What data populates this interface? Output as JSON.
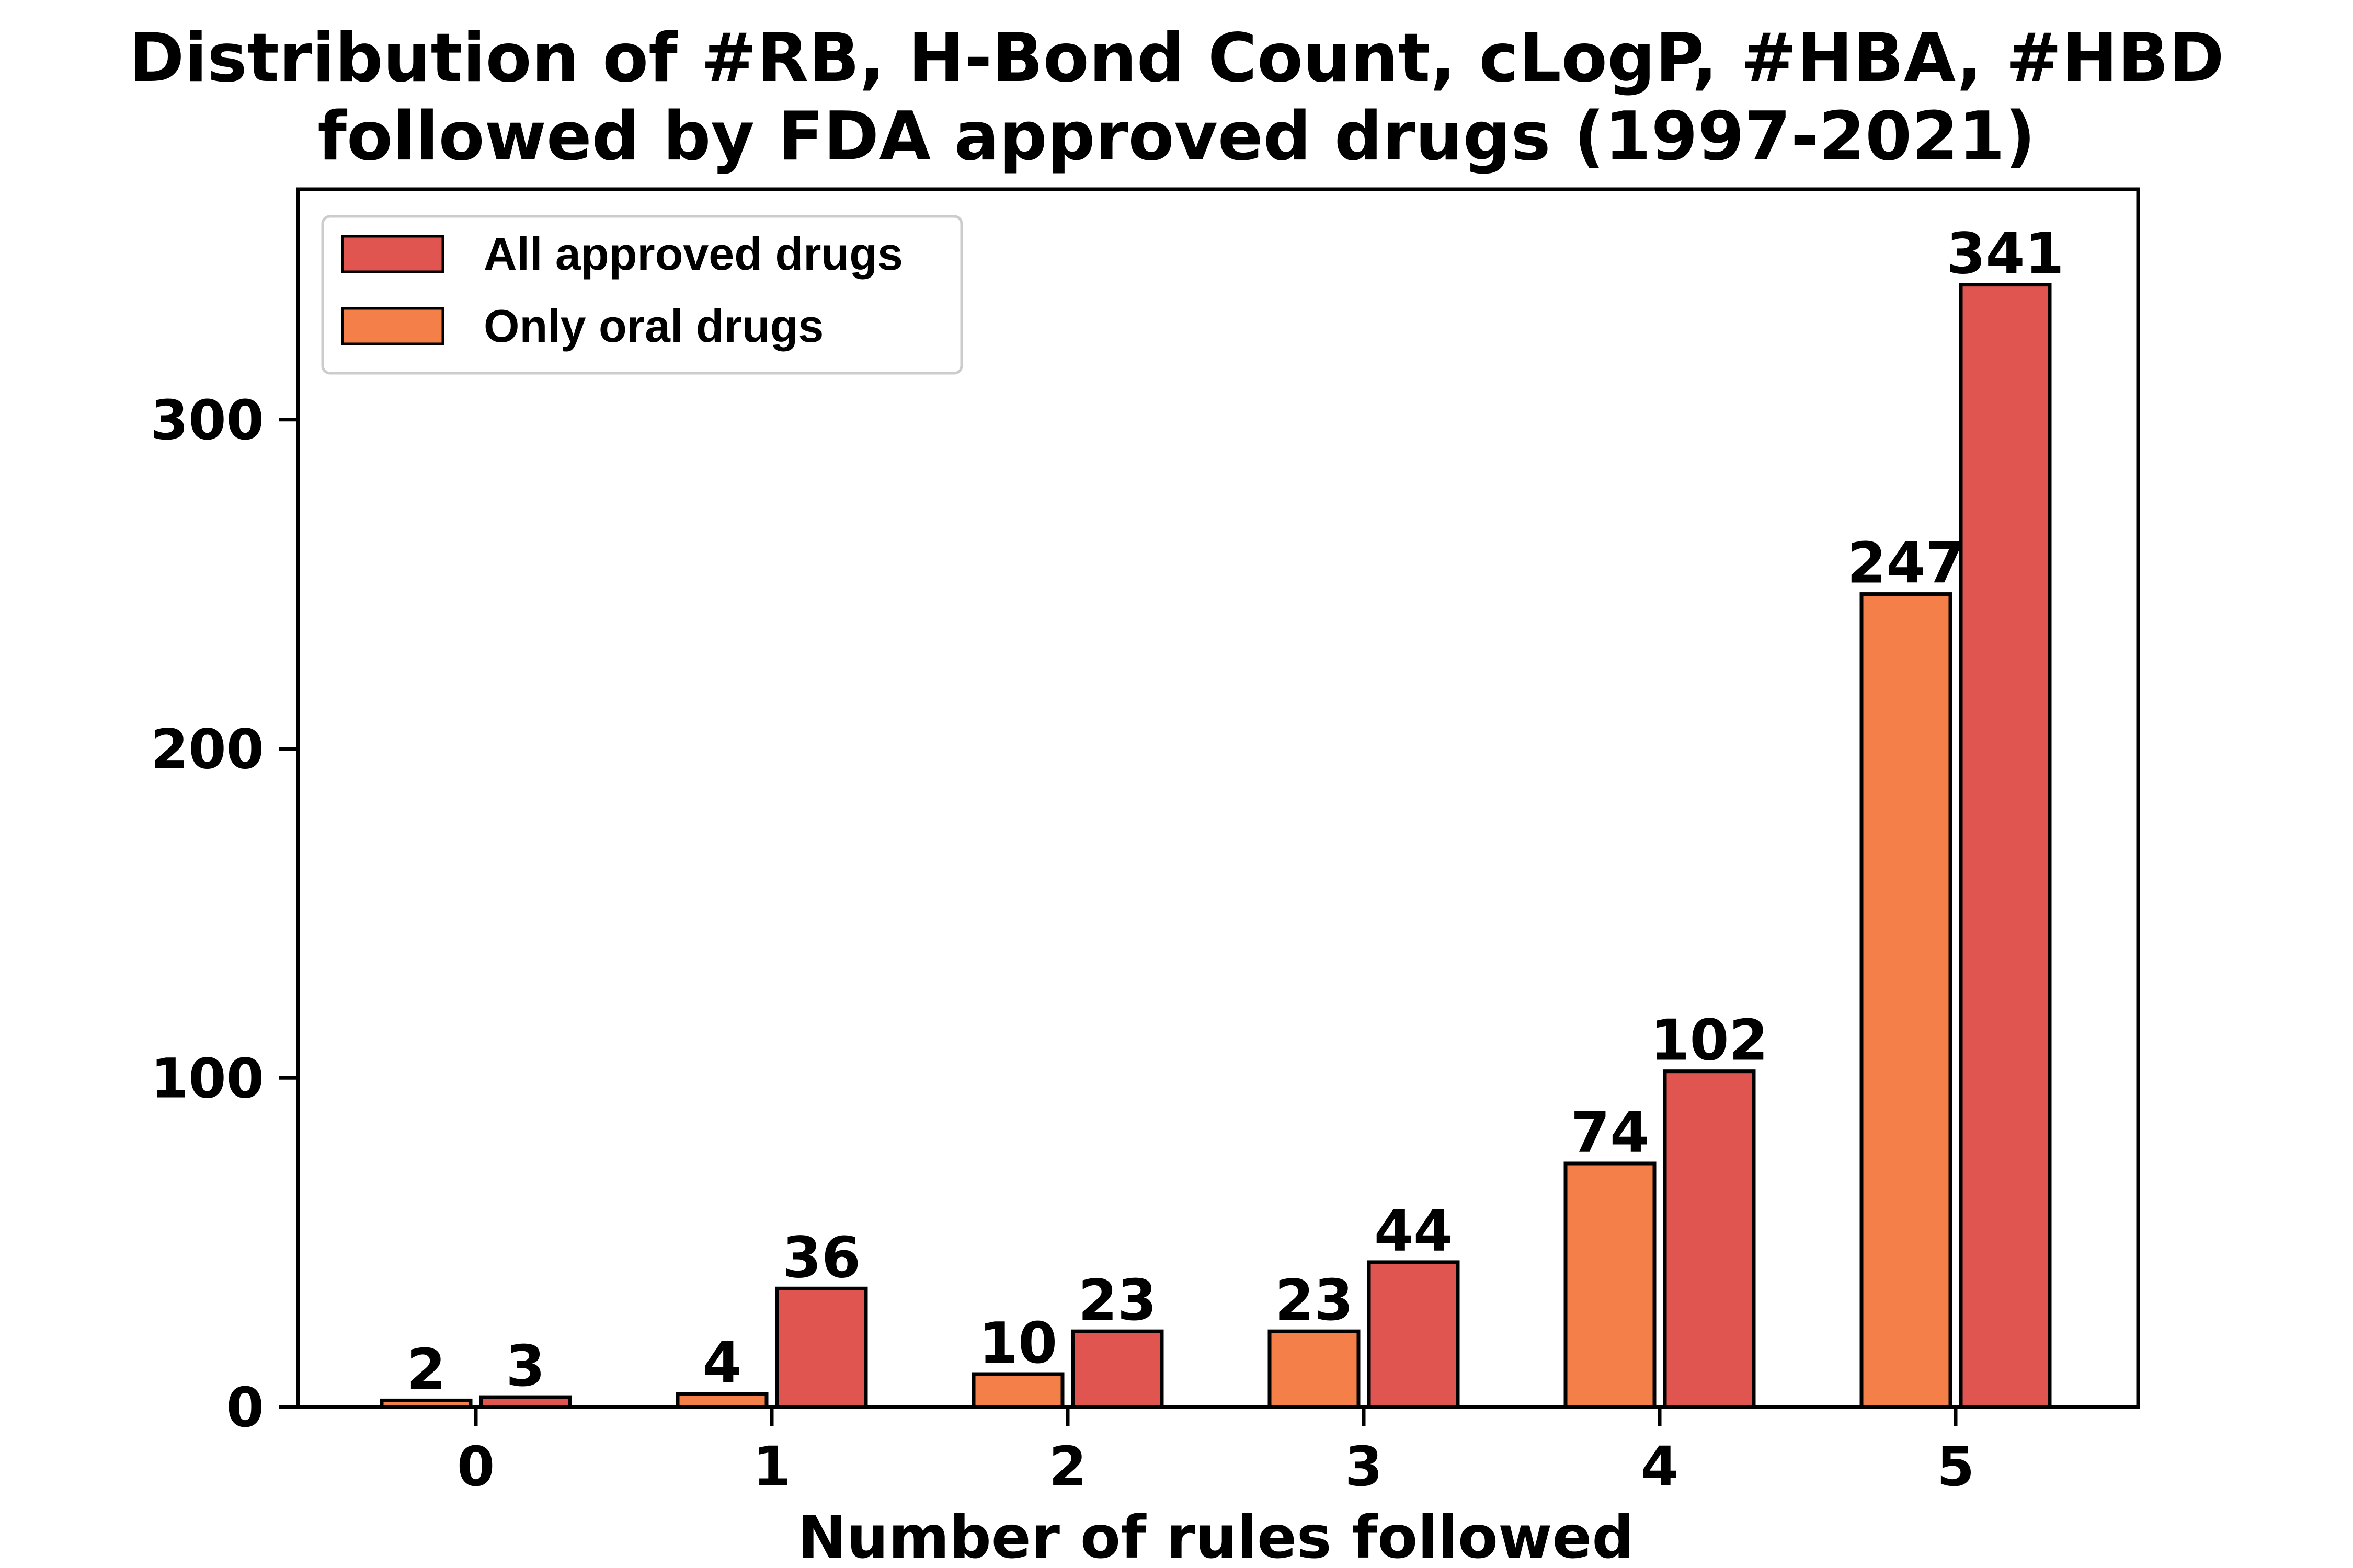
{
  "chart_data": {
    "type": "bar",
    "title_lines": [
      "Distribution of #RB, H-Bond Count, cLogP, #HBA, #HBD",
      "followed by FDA approved drugs (1997-2021)"
    ],
    "xlabel": "Number of rules followed",
    "ylabel": "",
    "categories": [
      "0",
      "1",
      "2",
      "3",
      "4",
      "5"
    ],
    "ylim": [
      0,
      370
    ],
    "yticks": [
      0,
      100,
      200,
      300
    ],
    "series": [
      {
        "name": "Only oral drugs",
        "values": [
          2,
          4,
          10,
          23,
          74,
          247
        ],
        "color": "#f47f48"
      },
      {
        "name": "All approved drugs",
        "values": [
          3,
          36,
          23,
          44,
          102,
          341
        ],
        "color": "#e05550"
      }
    ],
    "legend": {
      "position": "top-left",
      "entries": [
        "All approved drugs",
        "Only oral drugs"
      ]
    },
    "grid": false
  }
}
